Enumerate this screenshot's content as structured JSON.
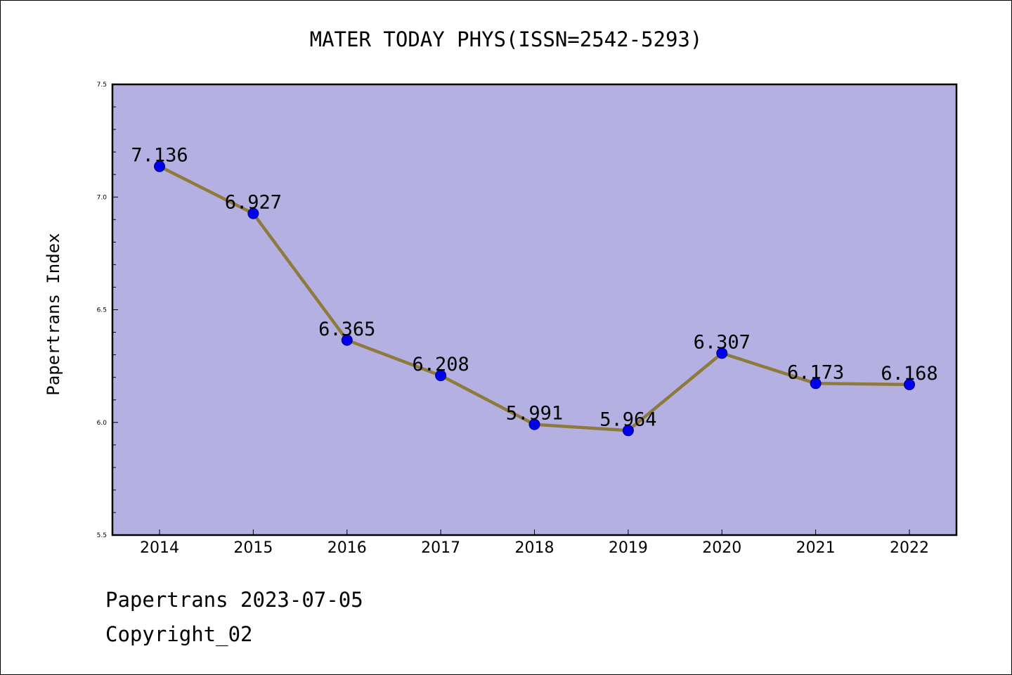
{
  "chart_data": {
    "type": "line",
    "title": "MATER TODAY PHYS(ISSN=2542-5293)",
    "xlabel": "",
    "ylabel": "Papertrans Index",
    "categories": [
      "2014",
      "2015",
      "2016",
      "2017",
      "2018",
      "2019",
      "2020",
      "2021",
      "2022"
    ],
    "series": [
      {
        "values": [
          7.136,
          6.927,
          6.365,
          6.208,
          5.991,
          5.964,
          6.307,
          6.173,
          6.168
        ],
        "labels": [
          "7.136",
          "6.927",
          "6.365",
          "6.208",
          "5.991",
          "5.964",
          "6.307",
          "6.173",
          "6.168"
        ]
      }
    ],
    "ylim": [
      5.5,
      7.5
    ],
    "yticks": [
      "5.5",
      "6.0",
      "6.5",
      "7.0",
      "7.5"
    ],
    "yticks_minor_step": 0.1,
    "grid": false,
    "legend": "none",
    "colors": {
      "plot_background": "#b5b0e2",
      "line": "#8f7a3d",
      "marker_fill": "#0000ee",
      "marker_edge": "#00007a",
      "axis": "#000000"
    }
  },
  "footer": {
    "source_date": "Papertrans 2023-07-05",
    "copyright": "Copyright_02"
  }
}
